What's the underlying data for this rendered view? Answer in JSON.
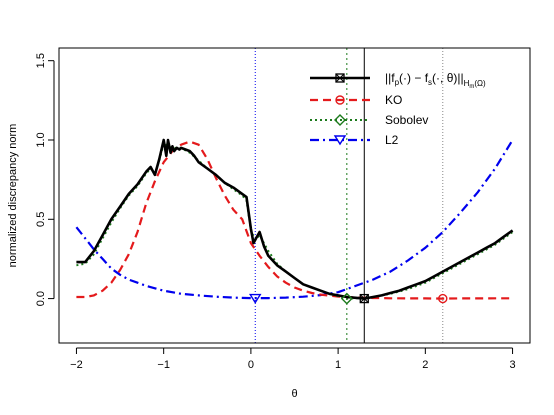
{
  "chart_data": {
    "type": "line",
    "title": "",
    "xlabel": "θ",
    "ylabel": "normalized discrepancy norm",
    "xlim": [
      -2.2,
      3.2
    ],
    "ylim": [
      -0.28,
      1.58
    ],
    "xticks": [
      -2,
      -1,
      0,
      1,
      2,
      3
    ],
    "xtick_labels": [
      "−2",
      "−1",
      "0",
      "1",
      "2",
      "3"
    ],
    "yticks": [
      0.0,
      0.5,
      1.0,
      1.5
    ],
    "ytick_labels": [
      "0.0",
      "0.5",
      "1.0",
      "1.5"
    ],
    "grid": false,
    "legend_position": "top-right",
    "legend_labels": {
      "first_prefix": "||f",
      "first_p": "p",
      "first_mid": "(·) − f",
      "first_s": "s",
      "first_tail": "(·, θ)||",
      "first_sub": "H",
      "first_subsub": "m",
      "first_end": "(Ω)",
      "ko": "KO",
      "sobolev": "Sobolev",
      "l2": "L2"
    },
    "series": [
      {
        "key": "discrepancy",
        "color": "#000000",
        "dash": "",
        "width": 2.6,
        "marker": "square-x",
        "min_at": [
          1.3,
          0.0
        ],
        "vline": 1.3,
        "vline_color": "#000000",
        "vline_dash": "",
        "x": [
          -2.0,
          -1.9,
          -1.8,
          -1.7,
          -1.6,
          -1.5,
          -1.4,
          -1.3,
          -1.2,
          -1.15,
          -1.1,
          -1.05,
          -1.0,
          -0.97,
          -0.95,
          -0.92,
          -0.9,
          -0.88,
          -0.85,
          -0.82,
          -0.8,
          -0.75,
          -0.7,
          -0.65,
          -0.6,
          -0.5,
          -0.4,
          -0.3,
          -0.2,
          -0.1,
          -0.05,
          0.0,
          0.03,
          0.06,
          0.1,
          0.15,
          0.2,
          0.3,
          0.4,
          0.5,
          0.6,
          0.7,
          0.8,
          0.9,
          1.0,
          1.1,
          1.2,
          1.3,
          1.4,
          1.5,
          1.6,
          1.7,
          1.8,
          1.9,
          2.0,
          2.1,
          2.2,
          2.3,
          2.4,
          2.5,
          2.6,
          2.7,
          2.8,
          2.9,
          3.0
        ],
        "y": [
          0.23,
          0.23,
          0.3,
          0.4,
          0.5,
          0.58,
          0.66,
          0.72,
          0.8,
          0.83,
          0.78,
          0.88,
          1.0,
          0.9,
          1.0,
          0.92,
          0.96,
          0.93,
          0.95,
          0.94,
          0.95,
          0.94,
          0.93,
          0.9,
          0.86,
          0.82,
          0.78,
          0.73,
          0.7,
          0.66,
          0.64,
          0.44,
          0.35,
          0.38,
          0.42,
          0.33,
          0.27,
          0.21,
          0.17,
          0.13,
          0.09,
          0.07,
          0.05,
          0.03,
          0.02,
          0.01,
          0.005,
          0.0,
          0.01,
          0.02,
          0.035,
          0.05,
          0.07,
          0.09,
          0.11,
          0.14,
          0.17,
          0.2,
          0.23,
          0.26,
          0.29,
          0.32,
          0.35,
          0.39,
          0.43
        ]
      },
      {
        "key": "ko",
        "color": "#e41a1c",
        "dash": "8,5",
        "width": 2.2,
        "marker": "circle",
        "min_at": [
          2.2,
          0.0
        ],
        "vline": 2.2,
        "vline_color": "#888888",
        "vline_dash": "1,2",
        "x": [
          -2.0,
          -1.9,
          -1.8,
          -1.7,
          -1.6,
          -1.5,
          -1.4,
          -1.3,
          -1.2,
          -1.1,
          -1.0,
          -0.9,
          -0.8,
          -0.7,
          -0.6,
          -0.5,
          -0.4,
          -0.3,
          -0.2,
          -0.1,
          0.0,
          0.1,
          0.2,
          0.3,
          0.4,
          0.5,
          0.6,
          0.7,
          0.8,
          0.9,
          1.0,
          1.1,
          1.2,
          1.3,
          1.4,
          1.5,
          1.6,
          1.7,
          1.8,
          1.9,
          2.0,
          2.2,
          2.4,
          2.6,
          2.8,
          3.0
        ],
        "y": [
          0.01,
          0.01,
          0.02,
          0.05,
          0.1,
          0.18,
          0.28,
          0.42,
          0.6,
          0.74,
          0.86,
          0.93,
          0.97,
          0.99,
          0.97,
          0.88,
          0.76,
          0.65,
          0.56,
          0.5,
          0.35,
          0.27,
          0.2,
          0.14,
          0.1,
          0.07,
          0.05,
          0.035,
          0.025,
          0.018,
          0.013,
          0.01,
          0.007,
          0.005,
          0.004,
          0.003,
          0.002,
          0.002,
          0.001,
          0.001,
          0.001,
          0.0,
          0.001,
          0.001,
          0.002,
          0.002
        ]
      },
      {
        "key": "sobolev",
        "color": "#1b7a1b",
        "dash": "2,3",
        "width": 2.0,
        "marker": "diamond",
        "min_at": [
          1.1,
          0.0
        ],
        "vline": 1.1,
        "vline_color": "#1b7a1b",
        "vline_dash": "2,3",
        "x": [
          -2.0,
          -1.9,
          -1.8,
          -1.7,
          -1.6,
          -1.5,
          -1.4,
          -1.3,
          -1.2,
          -1.15,
          -1.1,
          -1.05,
          -1.0,
          -0.95,
          -0.9,
          -0.85,
          -0.8,
          -0.7,
          -0.6,
          -0.5,
          -0.4,
          -0.3,
          -0.2,
          -0.1,
          -0.05,
          0.0,
          0.05,
          0.1,
          0.2,
          0.3,
          0.4,
          0.5,
          0.6,
          0.7,
          0.8,
          0.9,
          1.0,
          1.1,
          1.2,
          1.3,
          1.4,
          1.5,
          1.6,
          1.7,
          1.8,
          1.9,
          2.0,
          2.2,
          2.4,
          2.6,
          2.8,
          3.0
        ],
        "y": [
          0.21,
          0.22,
          0.28,
          0.38,
          0.48,
          0.57,
          0.65,
          0.71,
          0.79,
          0.82,
          0.79,
          0.87,
          0.98,
          0.96,
          0.95,
          0.95,
          0.95,
          0.92,
          0.87,
          0.82,
          0.78,
          0.73,
          0.69,
          0.65,
          0.62,
          0.43,
          0.37,
          0.4,
          0.3,
          0.22,
          0.17,
          0.13,
          0.09,
          0.07,
          0.05,
          0.03,
          0.015,
          0.0,
          0.002,
          0.005,
          0.01,
          0.02,
          0.03,
          0.045,
          0.06,
          0.08,
          0.1,
          0.16,
          0.22,
          0.28,
          0.34,
          0.42
        ]
      },
      {
        "key": "l2",
        "color": "#0000ee",
        "dash": "9,4,2,4",
        "width": 2.2,
        "marker": "triangle-down",
        "min_at": [
          0.05,
          0.0
        ],
        "vline": 0.05,
        "vline_color": "#0000ee",
        "vline_dash": "1,2",
        "x": [
          -2.0,
          -1.9,
          -1.8,
          -1.7,
          -1.6,
          -1.5,
          -1.4,
          -1.3,
          -1.2,
          -1.1,
          -1.0,
          -0.8,
          -0.6,
          -0.4,
          -0.2,
          0.0,
          0.2,
          0.4,
          0.6,
          0.8,
          1.0,
          1.2,
          1.4,
          1.6,
          1.8,
          2.0,
          2.2,
          2.4,
          2.6,
          2.8,
          3.0
        ],
        "y": [
          0.45,
          0.38,
          0.31,
          0.25,
          0.19,
          0.15,
          0.12,
          0.1,
          0.08,
          0.065,
          0.05,
          0.03,
          0.02,
          0.012,
          0.006,
          0.003,
          0.003,
          0.006,
          0.012,
          0.022,
          0.04,
          0.08,
          0.12,
          0.17,
          0.24,
          0.32,
          0.42,
          0.54,
          0.67,
          0.82,
          1.0
        ]
      }
    ]
  }
}
